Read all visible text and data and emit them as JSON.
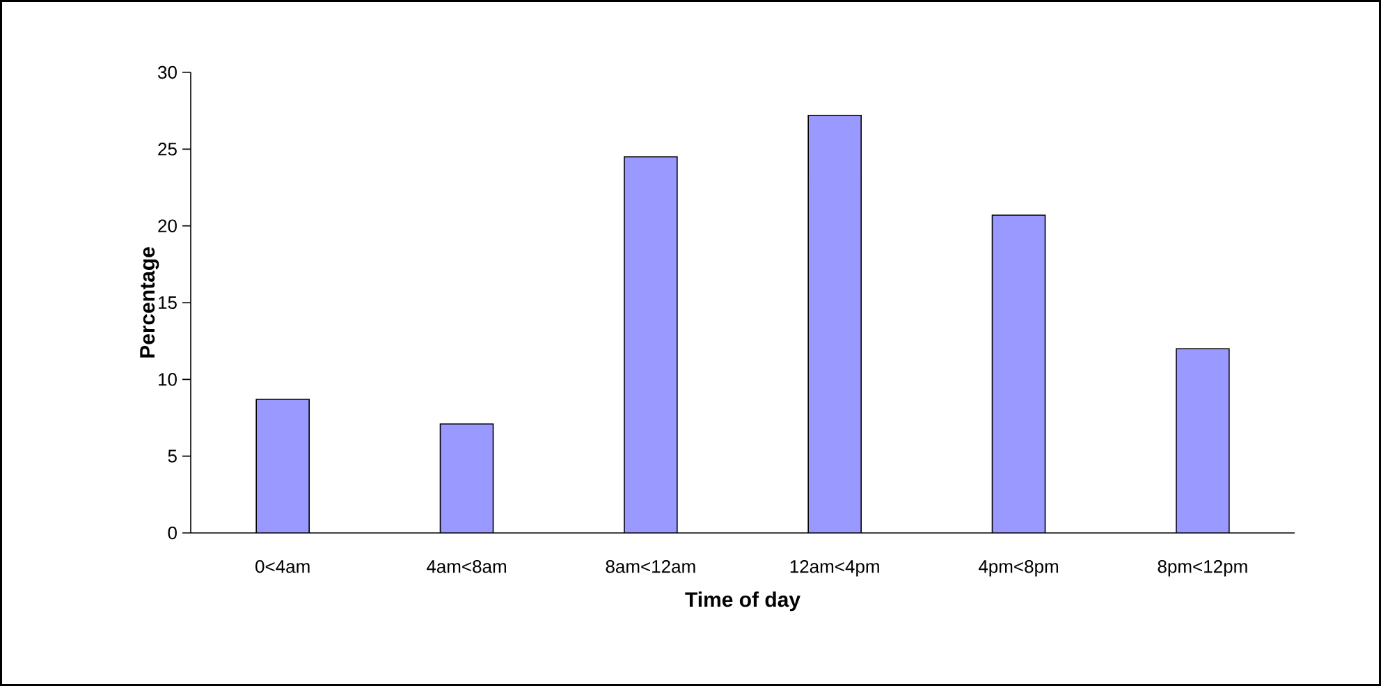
{
  "chart_data": {
    "type": "bar",
    "xlabel": "Time of day",
    "ylabel": "Percentage",
    "categories": [
      "0<4am",
      "4am<8am",
      "8am<12am",
      "12am<4pm",
      "4pm<8pm",
      "8pm<12pm"
    ],
    "values": [
      8.7,
      7.1,
      24.5,
      27.2,
      20.7,
      12.0
    ],
    "color": "#9999ff",
    "ylim": [
      0,
      30
    ],
    "yticks": [
      0,
      5,
      10,
      15,
      20,
      25,
      30
    ]
  }
}
